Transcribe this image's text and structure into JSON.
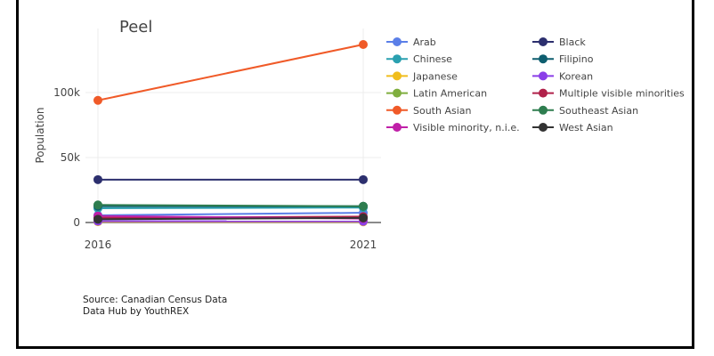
{
  "source": {
    "line1": "Source: Canadian Census Data",
    "line2": "Data Hub by YouthREX"
  },
  "chart_data": {
    "type": "line",
    "title": "Peel",
    "xlabel": "",
    "ylabel": "Population",
    "x": [
      "2016",
      "2021"
    ],
    "ylim": [
      0,
      140000
    ],
    "yticks": [
      0,
      50000,
      100000
    ],
    "ytick_labels": [
      "0",
      "50k",
      "100k"
    ],
    "grid": true,
    "legend_position": "right",
    "series": [
      {
        "name": "Arab",
        "color": "#5b7fe8",
        "values": [
          5500,
          7500
        ]
      },
      {
        "name": "Black",
        "color": "#2c2f6e",
        "values": [
          33000,
          33000
        ]
      },
      {
        "name": "Chinese",
        "color": "#2aa0b0",
        "values": [
          11000,
          11500
        ]
      },
      {
        "name": "Filipino",
        "color": "#0e5e6f",
        "values": [
          12500,
          12500
        ]
      },
      {
        "name": "Japanese",
        "color": "#f0bd1c",
        "values": [
          600,
          500
        ]
      },
      {
        "name": "Korean",
        "color": "#8a3ee8",
        "values": [
          1000,
          900
        ]
      },
      {
        "name": "Latin American",
        "color": "#7fae3e",
        "values": [
          4000,
          3800
        ]
      },
      {
        "name": "Multiple visible minorities",
        "color": "#b0214a",
        "values": [
          3500,
          4500
        ]
      },
      {
        "name": "South Asian",
        "color": "#f05a28",
        "values": [
          94000,
          137000
        ]
      },
      {
        "name": "Southeast Asian",
        "color": "#2e7d4f",
        "values": [
          13500,
          12500
        ]
      },
      {
        "name": "Visible minority, n.i.e.",
        "color": "#c020a8",
        "values": [
          5000,
          3000
        ]
      },
      {
        "name": "West Asian",
        "color": "#333333",
        "values": [
          2500,
          3500
        ]
      }
    ]
  }
}
